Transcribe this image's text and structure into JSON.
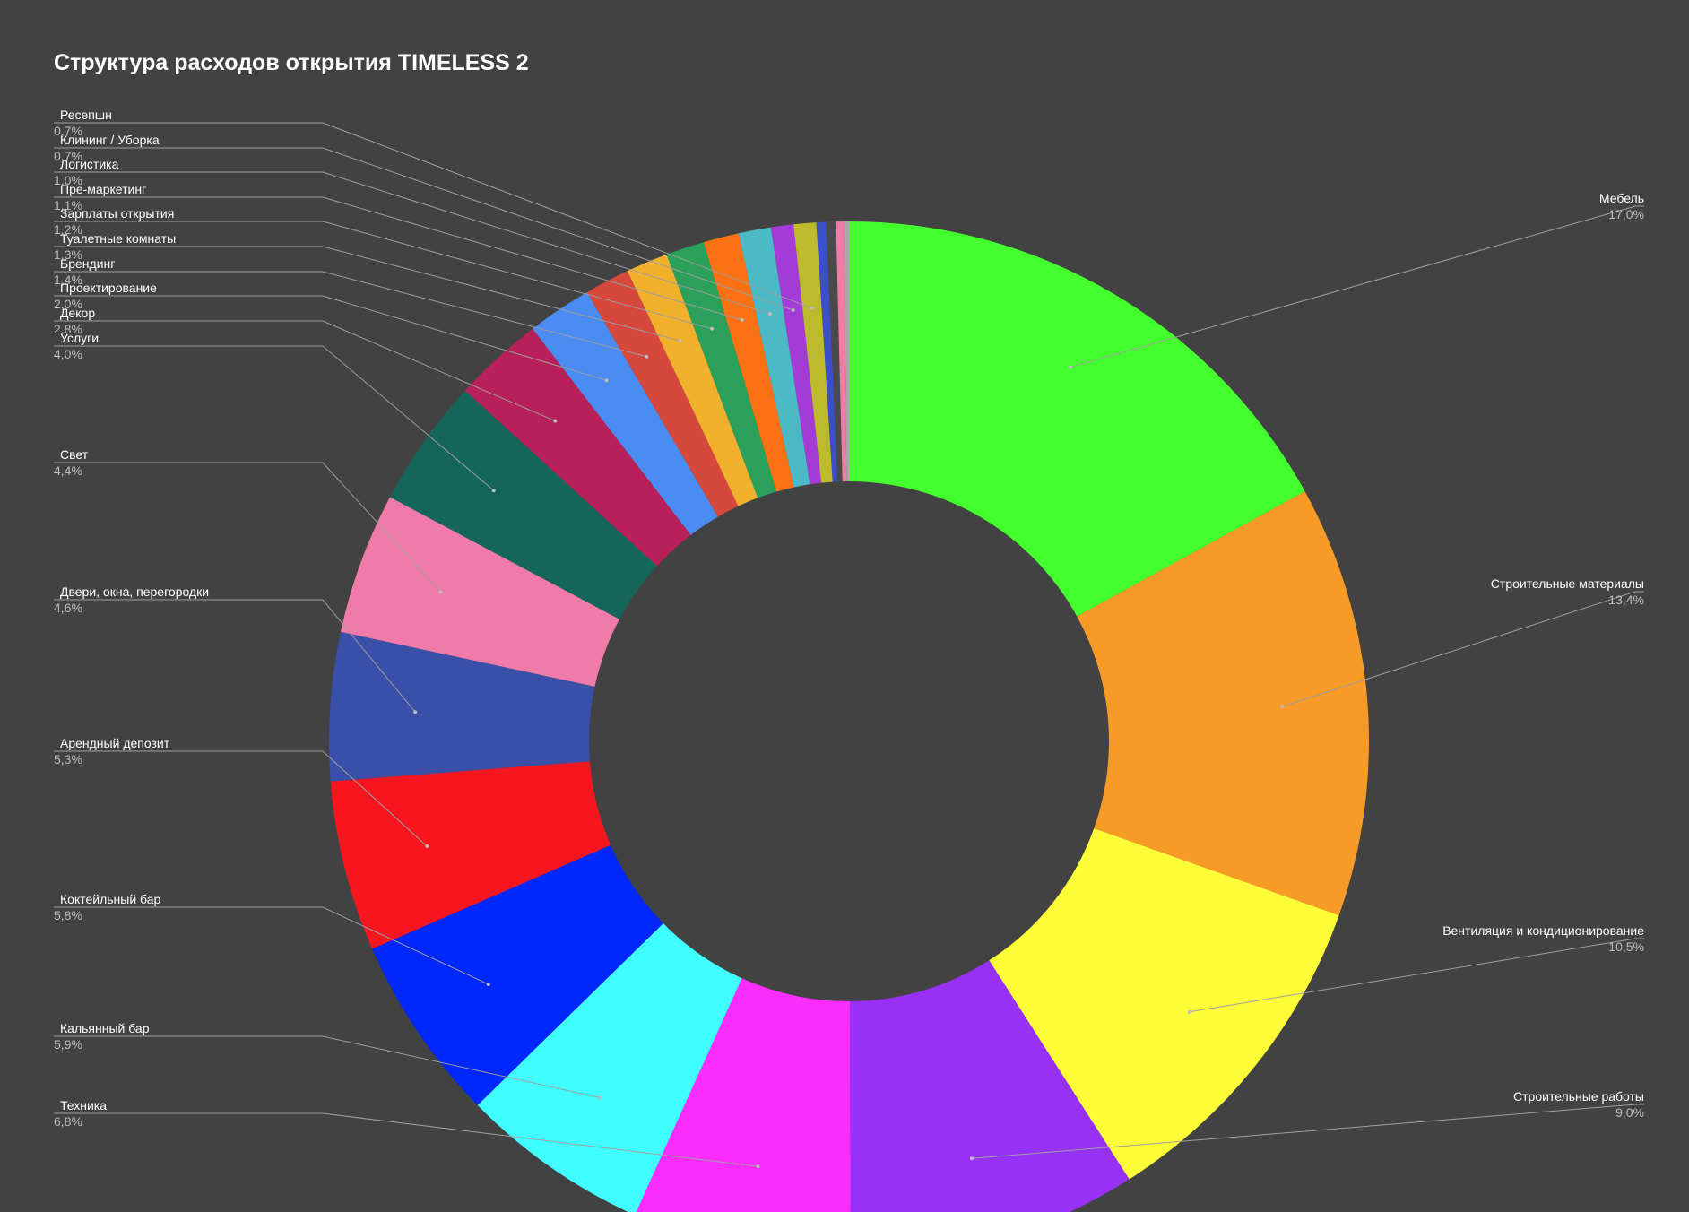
{
  "chart_data": {
    "type": "pie",
    "variant": "donut",
    "title": "Структура расходов открытия TIMELESS 2",
    "background": "#424242",
    "slices": [
      {
        "label": "Мебель",
        "value_label": "17,0%",
        "value": 17.0,
        "color": "#44ff2e"
      },
      {
        "label": "Строительные материалы",
        "value_label": "13,4%",
        "value": 13.4,
        "color": "#f89a26"
      },
      {
        "label": "Вентиляция и кондиционирование",
        "value_label": "10,5%",
        "value": 10.5,
        "color": "#fdfd38"
      },
      {
        "label": "Строительные работы",
        "value_label": "9,0%",
        "value": 9.0,
        "color": "#9631f5"
      },
      {
        "label": "Техника",
        "value_label": "6,8%",
        "value": 6.8,
        "color": "#fc2cfc"
      },
      {
        "label": "Кальянный бар",
        "value_label": "5,9%",
        "value": 5.9,
        "color": "#40fefe"
      },
      {
        "label": "Коктейльный бар",
        "value_label": "5,8%",
        "value": 5.8,
        "color": "#0027fb"
      },
      {
        "label": "Арендный депозит",
        "value_label": "5,3%",
        "value": 5.3,
        "color": "#f71620"
      },
      {
        "label": "Двери, окна, перегородки",
        "value_label": "4,6%",
        "value": 4.6,
        "color": "#3a4fa8"
      },
      {
        "label": "Свет",
        "value_label": "4,4%",
        "value": 4.4,
        "color": "#f07aa8"
      },
      {
        "label": "Услуги",
        "value_label": "4,0%",
        "value": 4.0,
        "color": "#14665a"
      },
      {
        "label": "Декор",
        "value_label": "2,8%",
        "value": 2.8,
        "color": "#b8205a"
      },
      {
        "label": "Проектирование",
        "value_label": "2,0%",
        "value": 2.0,
        "color": "#4a8cf2"
      },
      {
        "label": "Брендинг",
        "value_label": "1,4%",
        "value": 1.4,
        "color": "#d6473c"
      },
      {
        "label": "Туалетные комнаты",
        "value_label": "1,3%",
        "value": 1.3,
        "color": "#f1b12c"
      },
      {
        "label": "Зарплаты открытия",
        "value_label": "1,2%",
        "value": 1.2,
        "color": "#2aa05a"
      },
      {
        "label": "Пре-маркетинг",
        "value_label": "1,1%",
        "value": 1.1,
        "color": "#fb7113"
      },
      {
        "label": "Логистика",
        "value_label": "1,0%",
        "value": 1.0,
        "color": "#4cbac6"
      },
      {
        "label": "Клининг / Уборка",
        "value_label": "0,7%",
        "value": 0.7,
        "color": "#a43bd6"
      },
      {
        "label": "Ресепшн",
        "value_label": "0,7%",
        "value": 0.7,
        "color": "#bdbb2c"
      },
      {
        "label": "",
        "value_label": "",
        "value": 0.3,
        "color": "#3a4fc8"
      },
      {
        "label": "",
        "value_label": "",
        "value": 0.3,
        "color": "#4a4a4a"
      },
      {
        "label": "",
        "value_label": "",
        "value": 0.25,
        "color": "#f07aa8"
      },
      {
        "label": "",
        "value_label": "",
        "value": 0.15,
        "color": "#a8a8a8"
      }
    ],
    "legend": "none",
    "data_labels": "outside-with-leader-lines"
  }
}
